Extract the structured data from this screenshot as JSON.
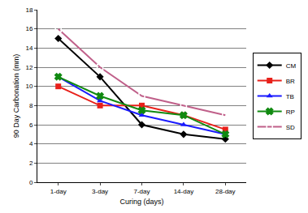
{
  "chart_data": {
    "type": "line",
    "xlabel": "Curing (days)",
    "ylabel": "90 Day Carbonation (mm)",
    "categories": [
      "1-day",
      "3-day",
      "7-day",
      "14-day",
      "28-day"
    ],
    "series": [
      {
        "name": "CM",
        "color": "#000000",
        "marker": "diamond",
        "values": [
          15,
          11,
          6,
          5,
          4.5
        ]
      },
      {
        "name": "BR",
        "color": "#e8201a",
        "marker": "square",
        "values": [
          10,
          8,
          8,
          7,
          5.5
        ]
      },
      {
        "name": "TB",
        "color": "#1a1aff",
        "marker": "triangle-up",
        "values": [
          11,
          8.5,
          7,
          6,
          5
        ]
      },
      {
        "name": "RP",
        "color": "#118a11",
        "marker": "x",
        "values": [
          11,
          9,
          7.5,
          7,
          5
        ]
      },
      {
        "name": "SD",
        "color": "#c0608a",
        "marker": "square-open",
        "values": [
          16,
          12,
          9,
          8,
          7
        ]
      }
    ],
    "ylim": [
      0,
      18
    ],
    "yticks": [
      0,
      2,
      4,
      6,
      8,
      10,
      12,
      14,
      16,
      18
    ],
    "grid": true,
    "legend": "right"
  }
}
